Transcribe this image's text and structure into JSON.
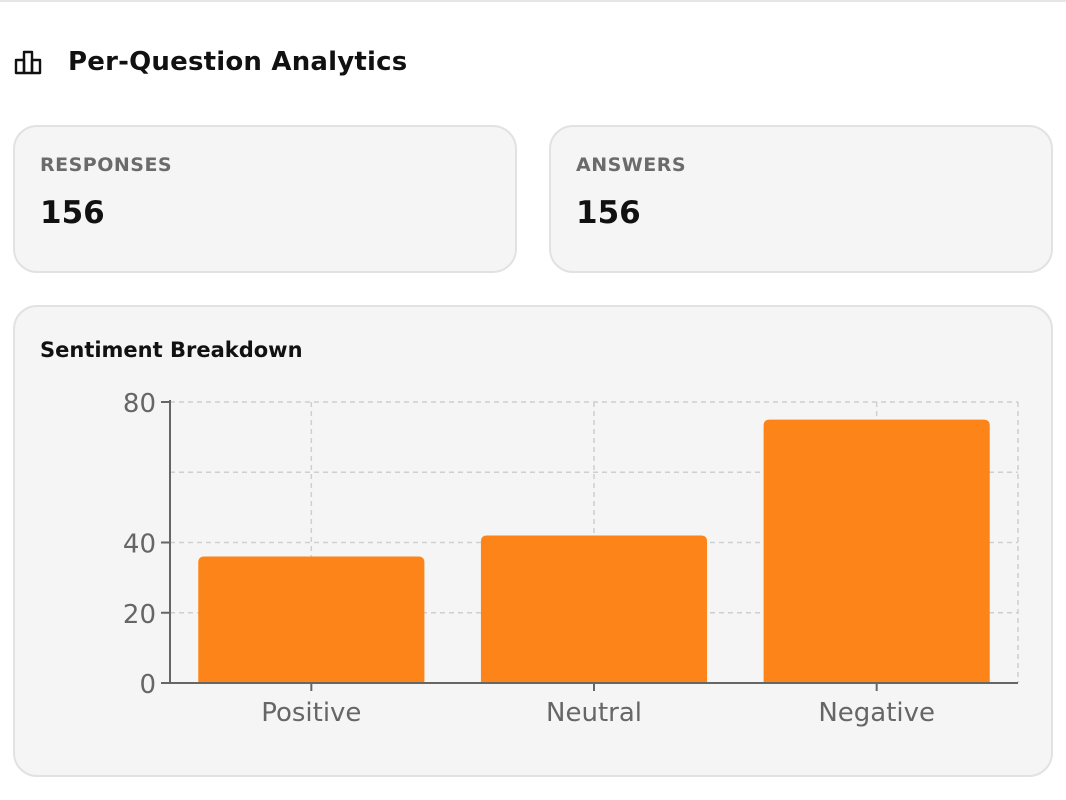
{
  "header": {
    "title": "Per-Question Analytics",
    "icon": "bar-chart-icon"
  },
  "stats": {
    "responses": {
      "label": "RESPONSES",
      "value": "156"
    },
    "answers": {
      "label": "ANSWERS",
      "value": "156"
    }
  },
  "chart_data": {
    "type": "bar",
    "title": "Sentiment Breakdown",
    "categories": [
      "Positive",
      "Neutral",
      "Negative"
    ],
    "values": [
      36,
      42,
      75
    ],
    "ylim": [
      0,
      80
    ],
    "yticks": [
      0,
      20,
      40,
      80
    ],
    "grid": true,
    "bar_color": "#fd8418",
    "xlabel": "",
    "ylabel": ""
  }
}
